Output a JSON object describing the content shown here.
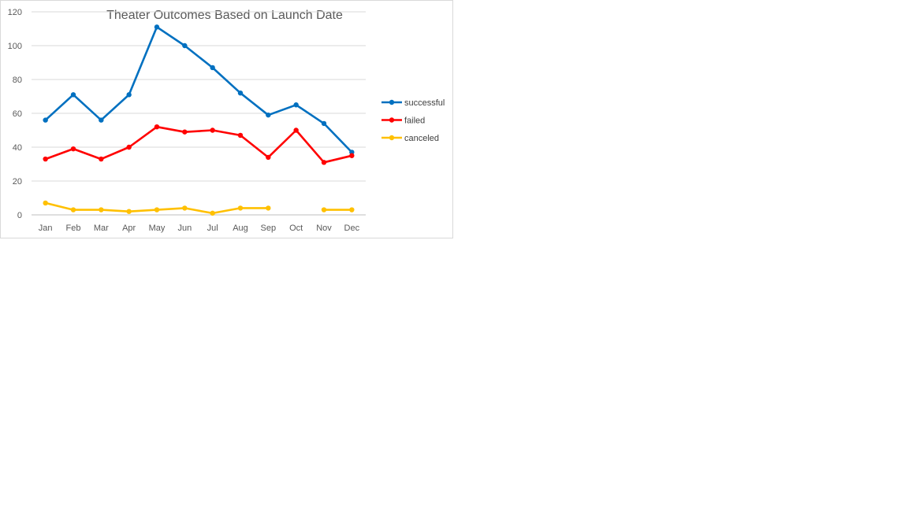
{
  "chart_data": {
    "type": "line",
    "title": "Theater Outcomes Based on Launch Date",
    "categories": [
      "Jan",
      "Feb",
      "Mar",
      "Apr",
      "May",
      "Jun",
      "Jul",
      "Aug",
      "Sep",
      "Oct",
      "Nov",
      "Dec"
    ],
    "series": [
      {
        "name": "successful",
        "color": "#0070C0",
        "values": [
          56,
          71,
          56,
          71,
          111,
          100,
          87,
          72,
          59,
          65,
          54,
          37
        ]
      },
      {
        "name": "failed",
        "color": "#FF0000",
        "values": [
          33,
          39,
          33,
          40,
          52,
          49,
          50,
          47,
          34,
          50,
          31,
          35
        ]
      },
      {
        "name": "canceled",
        "color": "#FFC000",
        "values": [
          7,
          3,
          3,
          2,
          3,
          4,
          1,
          4,
          4,
          null,
          3,
          3
        ]
      }
    ],
    "yticks": [
      "0",
      "20",
      "40",
      "60",
      "80",
      "100",
      "120"
    ],
    "ylim": [
      0,
      120
    ],
    "xlabel": "",
    "ylabel": "",
    "grid": true,
    "legend_position": "right"
  }
}
